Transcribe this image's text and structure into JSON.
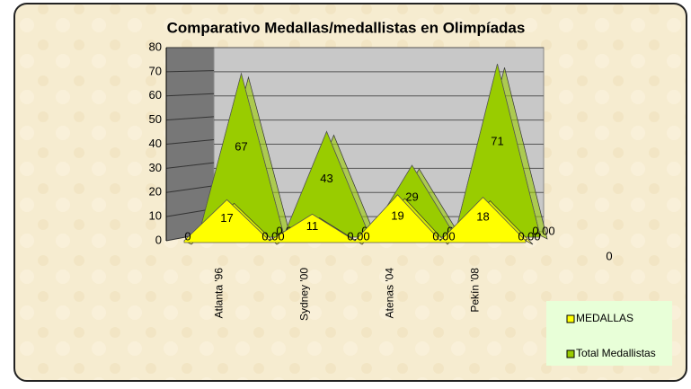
{
  "chart_data": {
    "type": "area3d",
    "title": "Comparativo Medallas/medallistas en Olimpíadas",
    "categories": [
      null,
      "Atlanta '96",
      null,
      "Sydney '00",
      null,
      "Atenas '04",
      null,
      "Pekín '08",
      null
    ],
    "series": [
      {
        "name": "MEDALLAS",
        "color": "#ffff00",
        "values": [
          0,
          17,
          0,
          11,
          0,
          19,
          0,
          18,
          0
        ],
        "value_labels": [
          "0",
          "17",
          "0.00",
          "11",
          "0.00",
          "19",
          "0.00",
          "18",
          "0.00"
        ]
      },
      {
        "name": "Total Medallistas",
        "color": "#99cc00",
        "values": [
          0,
          67,
          0,
          43,
          0,
          29,
          0,
          71,
          0
        ],
        "value_labels": [
          "0",
          "67",
          "0.00",
          "43",
          "0.00",
          "29",
          "0.00",
          "71",
          "0.00"
        ]
      }
    ],
    "annotations": [
      "0"
    ],
    "ylim": [
      0,
      80
    ],
    "yticks": [
      0,
      10,
      20,
      30,
      40,
      50,
      60,
      70,
      80
    ],
    "grid": true,
    "legend": "bottom-right"
  }
}
